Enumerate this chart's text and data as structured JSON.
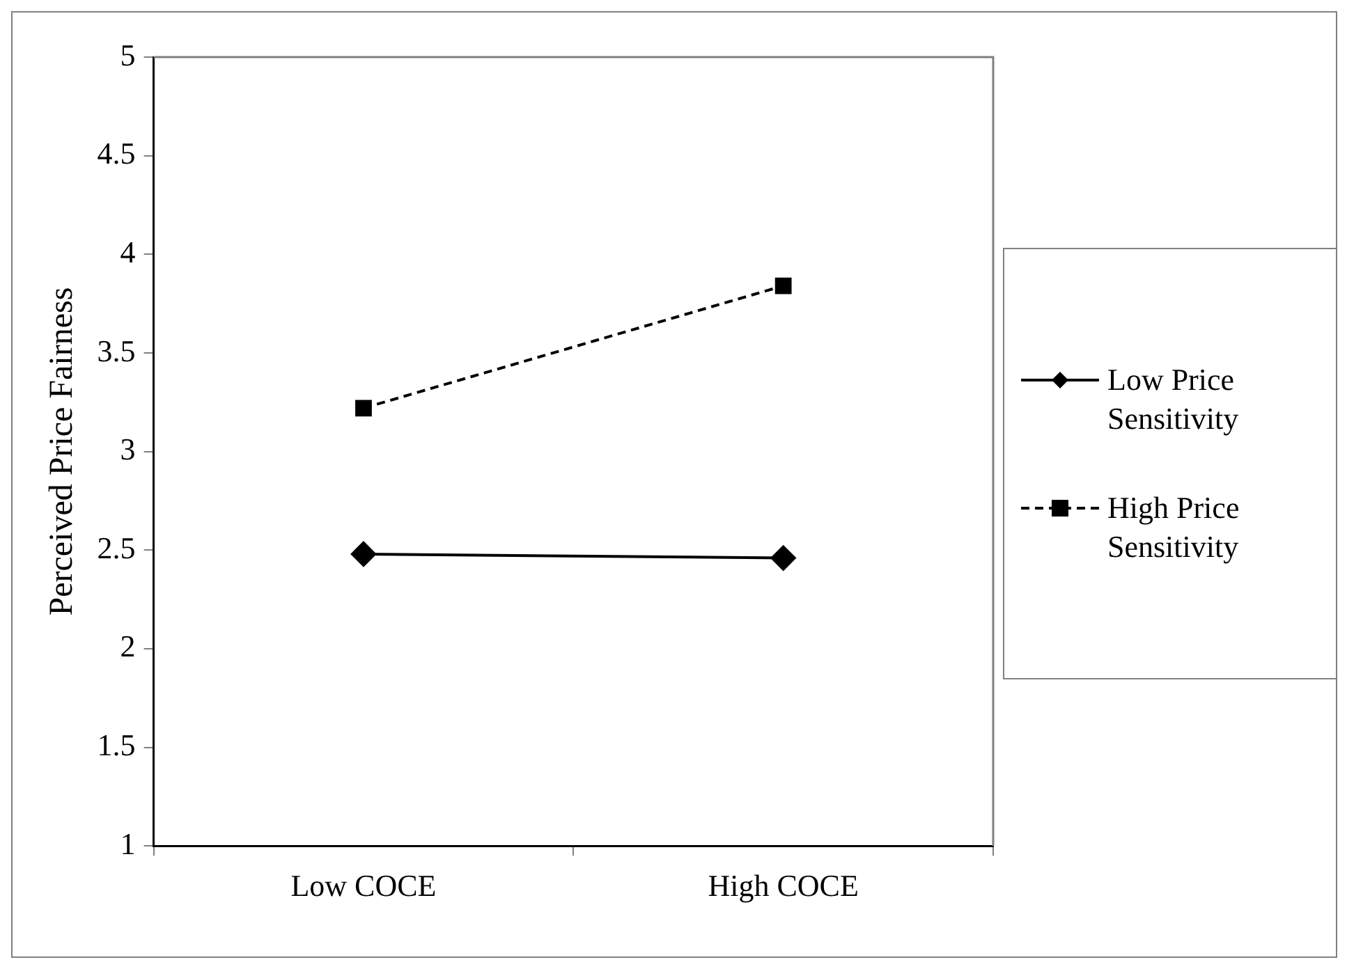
{
  "chart_data": {
    "type": "line",
    "ylabel": "Perceived Price Fairness",
    "categories": [
      "Low COCE",
      "High COCE"
    ],
    "series": [
      {
        "name": "Low Price Sensitivity",
        "color": "#000000",
        "values": [
          2.48,
          2.46
        ],
        "marker": "diamond",
        "line_style": "solid"
      },
      {
        "name": "High Price Sensitivity",
        "color": "#000000",
        "values": [
          3.22,
          3.84
        ],
        "marker": "square",
        "line_style": "dashed"
      }
    ],
    "ylim": [
      1,
      5
    ],
    "yticks": [
      1,
      1.5,
      2,
      2.5,
      3,
      3.5,
      4,
      4.5,
      5
    ],
    "grid": false,
    "legend": "right"
  }
}
